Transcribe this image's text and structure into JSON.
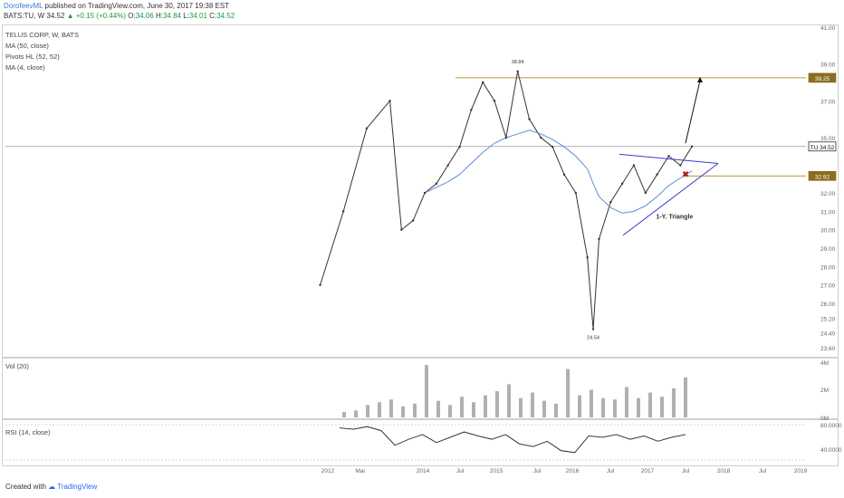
{
  "header": {
    "author": "DorofeevML",
    "published": "published on TradingView.com, June 30, 2017 19:38 EST",
    "symbol": "BATS:TU, W",
    "last": "34.52",
    "change": "+0.15 (+0.44%)",
    "o_label": "O:",
    "o_value": "34.06",
    "h_label": "H:",
    "h_value": "34.84",
    "l_label": "L:",
    "l_value": "34.01",
    "c_label": "C:",
    "c_value": "34.52"
  },
  "indicators": [
    "TELUS CORP, W, BATS",
    "MA (50, close)",
    "Pivots HL (52, 52)",
    "MA (4, close)"
  ],
  "volume_label": "Vol (20)",
  "rsi_label": "RSI (14, close)",
  "footer": {
    "created": "Created with",
    "brand": "TradingView"
  },
  "colors": {
    "price": "#333333",
    "ma50": "#5b8fd6",
    "ma4": "#888888",
    "resistance": "#b8963a",
    "triangle": "#3a3ad0",
    "badge": "#8a6d1f"
  },
  "chart_data": [
    {
      "type": "line",
      "name": "price",
      "x": [
        "2012-02",
        "2012-06",
        "2012-10",
        "2013-02",
        "2013-04",
        "2013-06",
        "2013-08",
        "2013-10",
        "2013-12",
        "2014-02",
        "2014-04",
        "2014-06",
        "2014-08",
        "2014-10",
        "2014-12",
        "2015-02",
        "2015-04",
        "2015-06",
        "2015-08",
        "2015-10",
        "2015-12",
        "2016-01",
        "2016-02",
        "2016-04",
        "2016-06",
        "2016-08",
        "2016-10",
        "2016-12",
        "2017-02",
        "2017-04",
        "2017-06"
      ],
      "y": [
        27.0,
        31.0,
        35.5,
        37.0,
        30.0,
        30.5,
        32.0,
        32.5,
        33.5,
        34.5,
        36.5,
        38.0,
        37.0,
        35.0,
        38.6,
        36.0,
        35.0,
        34.5,
        33.0,
        32.0,
        28.5,
        24.6,
        29.5,
        31.5,
        32.5,
        33.5,
        32.0,
        33.0,
        34.0,
        33.5,
        34.52
      ],
      "ma50": [
        null,
        null,
        null,
        null,
        null,
        null,
        32.0,
        32.3,
        32.6,
        33.0,
        33.6,
        34.2,
        34.7,
        35.0,
        35.2,
        35.4,
        35.2,
        34.9,
        34.5,
        34.0,
        33.3,
        32.5,
        31.8,
        31.2,
        30.9,
        31.0,
        31.3,
        31.8,
        32.4,
        32.8,
        33.2
      ],
      "annotations": [
        {
          "label": "38.84",
          "x": "2014-12",
          "y": 38.84
        },
        {
          "label": "24.54",
          "x": "2016-01",
          "y": 24.54
        },
        {
          "label": "1-Y. Triangle",
          "x": "2017-03",
          "y": 31.1
        }
      ],
      "price_badges": [
        {
          "label": "38.25",
          "y": 38.25
        },
        {
          "label": "TU 34.52",
          "y": 34.52
        },
        {
          "label": "32.92",
          "y": 32.92
        }
      ],
      "yticks": [
        "41.00",
        "39.00",
        "37.00",
        "35.00",
        "33.00",
        "32.00",
        "31.00",
        "30.00",
        "29.00",
        "28.00",
        "27.00",
        "26.00",
        "25.20",
        "24.40",
        "23.60"
      ],
      "xticks": [
        "2012",
        "Mar",
        "2014",
        "Jul",
        "2015",
        "Jul",
        "2016",
        "Jul",
        "2017",
        "Jul",
        "2018",
        "Jul",
        "2019"
      ],
      "ylim": [
        23.2,
        41.0
      ]
    },
    {
      "type": "bar",
      "name": "Vol (20)",
      "values": [
        0.4,
        0.5,
        0.9,
        1.1,
        1.3,
        0.8,
        1.0,
        3.8,
        1.2,
        0.9,
        1.5,
        1.1,
        1.6,
        1.9,
        2.4,
        1.4,
        1.8,
        1.2,
        1.0,
        3.5,
        1.6,
        2.0,
        1.4,
        1.3,
        2.2,
        1.4,
        1.8,
        1.5,
        2.1,
        2.9
      ],
      "yticks": [
        "4M",
        "2M",
        "0M"
      ]
    },
    {
      "type": "line",
      "name": "RSI (14, close)",
      "values": [
        72,
        70,
        74,
        68,
        46,
        55,
        62,
        50,
        58,
        66,
        60,
        55,
        62,
        48,
        44,
        52,
        38,
        35,
        60,
        58,
        62,
        55,
        60,
        52,
        58,
        62
      ],
      "yticks": [
        "80.0000",
        "40.0000"
      ]
    }
  ]
}
